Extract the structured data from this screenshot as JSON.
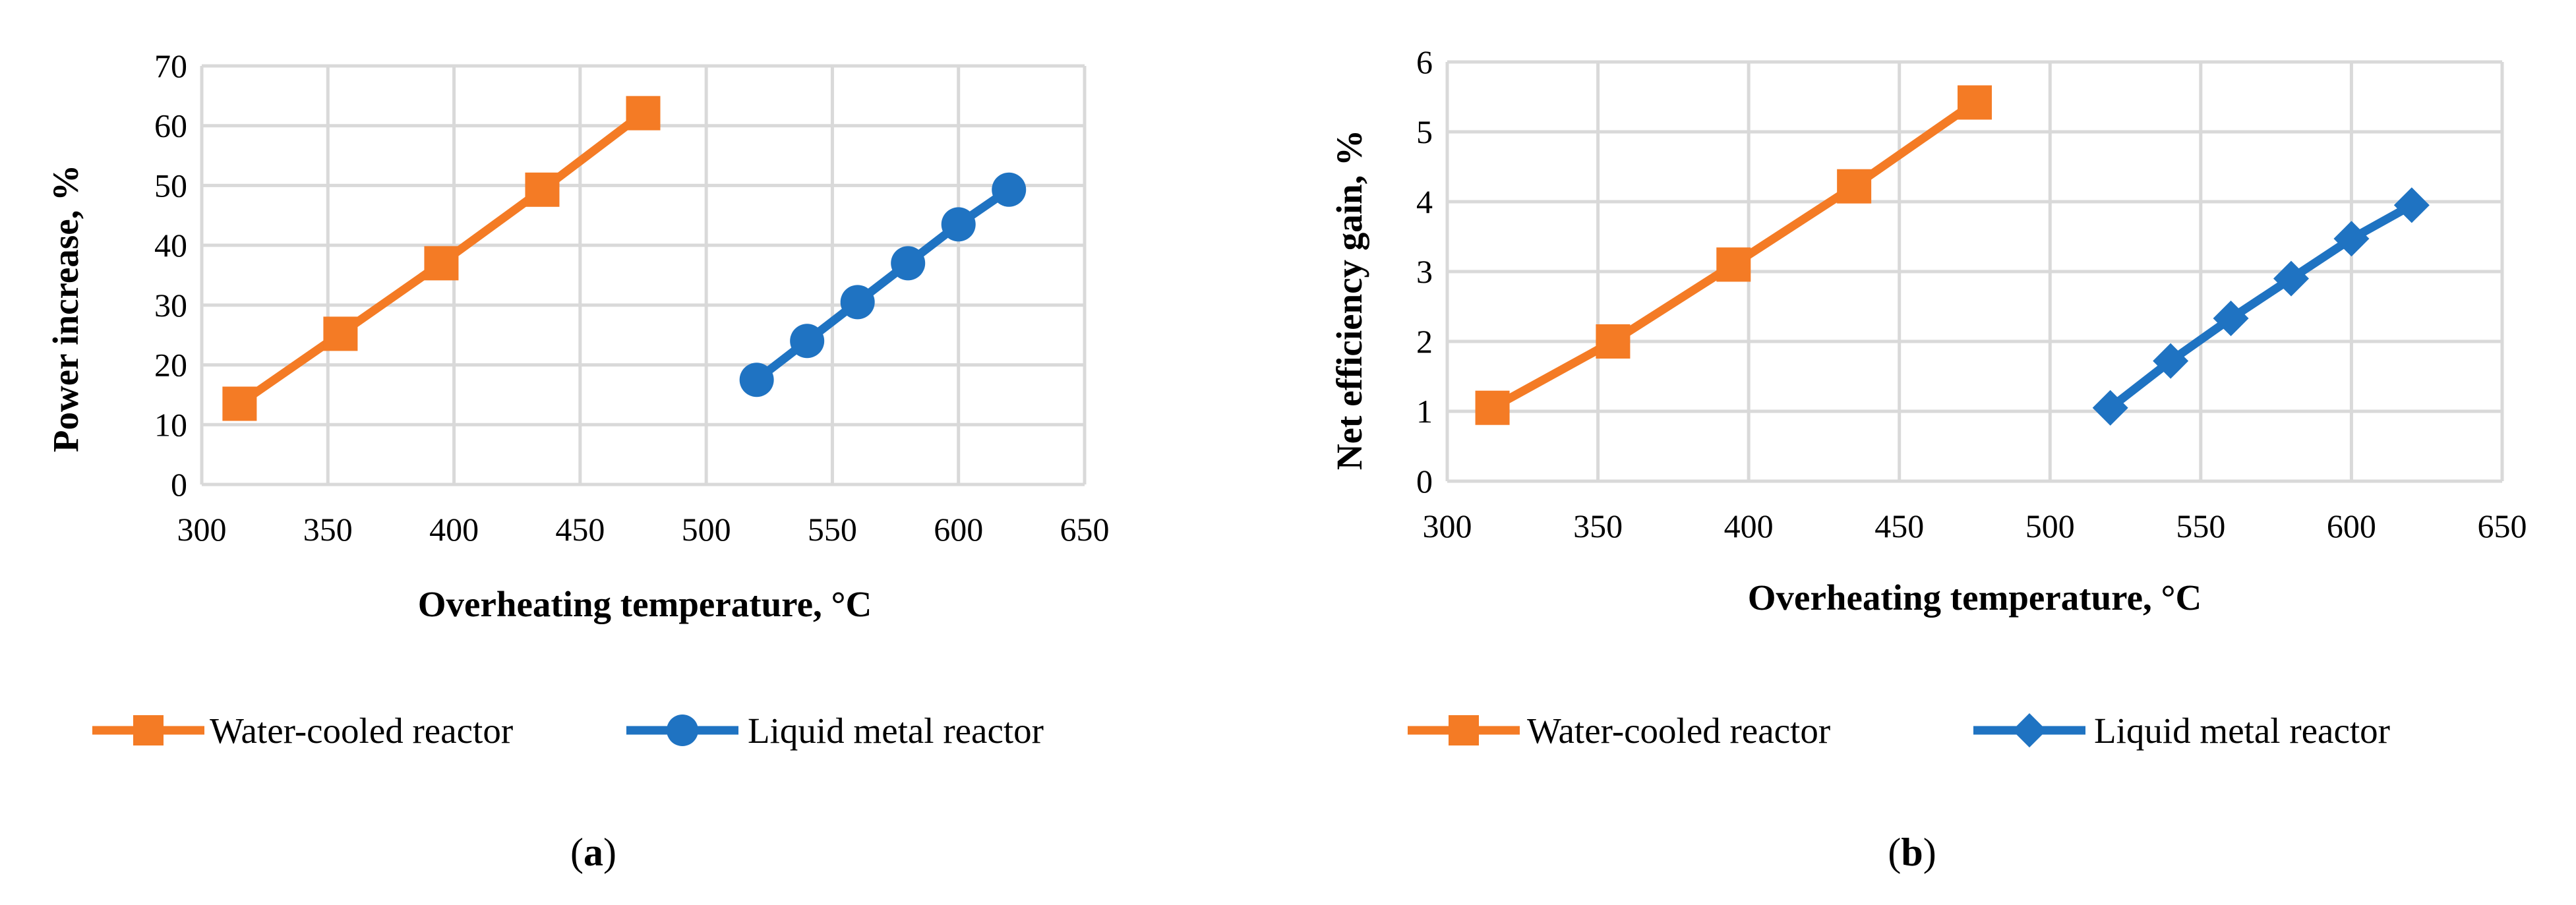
{
  "chart_data": [
    {
      "type": "line",
      "panel_label": "a",
      "xlabel": "Overheating temperature, °C",
      "ylabel": "Power increase, %",
      "xlim": [
        300,
        650
      ],
      "ylim": [
        0,
        70
      ],
      "x_ticks": [
        300,
        350,
        400,
        450,
        500,
        550,
        600,
        650
      ],
      "y_ticks": [
        0,
        10,
        20,
        30,
        40,
        50,
        60,
        70
      ],
      "grid": true,
      "legend_position": "bottom",
      "series": [
        {
          "name": "Water-cooled reactor",
          "color": "#f47b25",
          "marker": "square",
          "x": [
            315,
            355,
            395,
            435,
            475
          ],
          "y": [
            13.5,
            25.2,
            37.0,
            49.3,
            62.1
          ]
        },
        {
          "name": "Liquid metal reactor",
          "color": "#1f73c2",
          "marker": "circle",
          "x": [
            520,
            540,
            560,
            580,
            600,
            620
          ],
          "y": [
            17.5,
            24.0,
            30.5,
            37.0,
            43.5,
            49.3
          ]
        }
      ]
    },
    {
      "type": "line",
      "panel_label": "b",
      "xlabel": "Overheating temperature, °C",
      "ylabel": "Net efficiency gain, %",
      "xlim": [
        300,
        650
      ],
      "ylim": [
        0,
        6
      ],
      "x_ticks": [
        300,
        350,
        400,
        450,
        500,
        550,
        600,
        650
      ],
      "y_ticks": [
        0,
        1,
        2,
        3,
        4,
        5,
        6
      ],
      "grid": true,
      "legend_position": "bottom",
      "series": [
        {
          "name": "Water-cooled reactor",
          "color": "#f47b25",
          "marker": "square",
          "x": [
            315,
            355,
            395,
            435,
            475
          ],
          "y": [
            1.05,
            2.0,
            3.1,
            4.22,
            5.42
          ]
        },
        {
          "name": "Liquid metal reactor",
          "color": "#1f73c2",
          "marker": "diamond",
          "x": [
            520,
            540,
            560,
            580,
            600,
            620
          ],
          "y": [
            1.05,
            1.72,
            2.33,
            2.9,
            3.47,
            3.95
          ]
        }
      ]
    }
  ]
}
